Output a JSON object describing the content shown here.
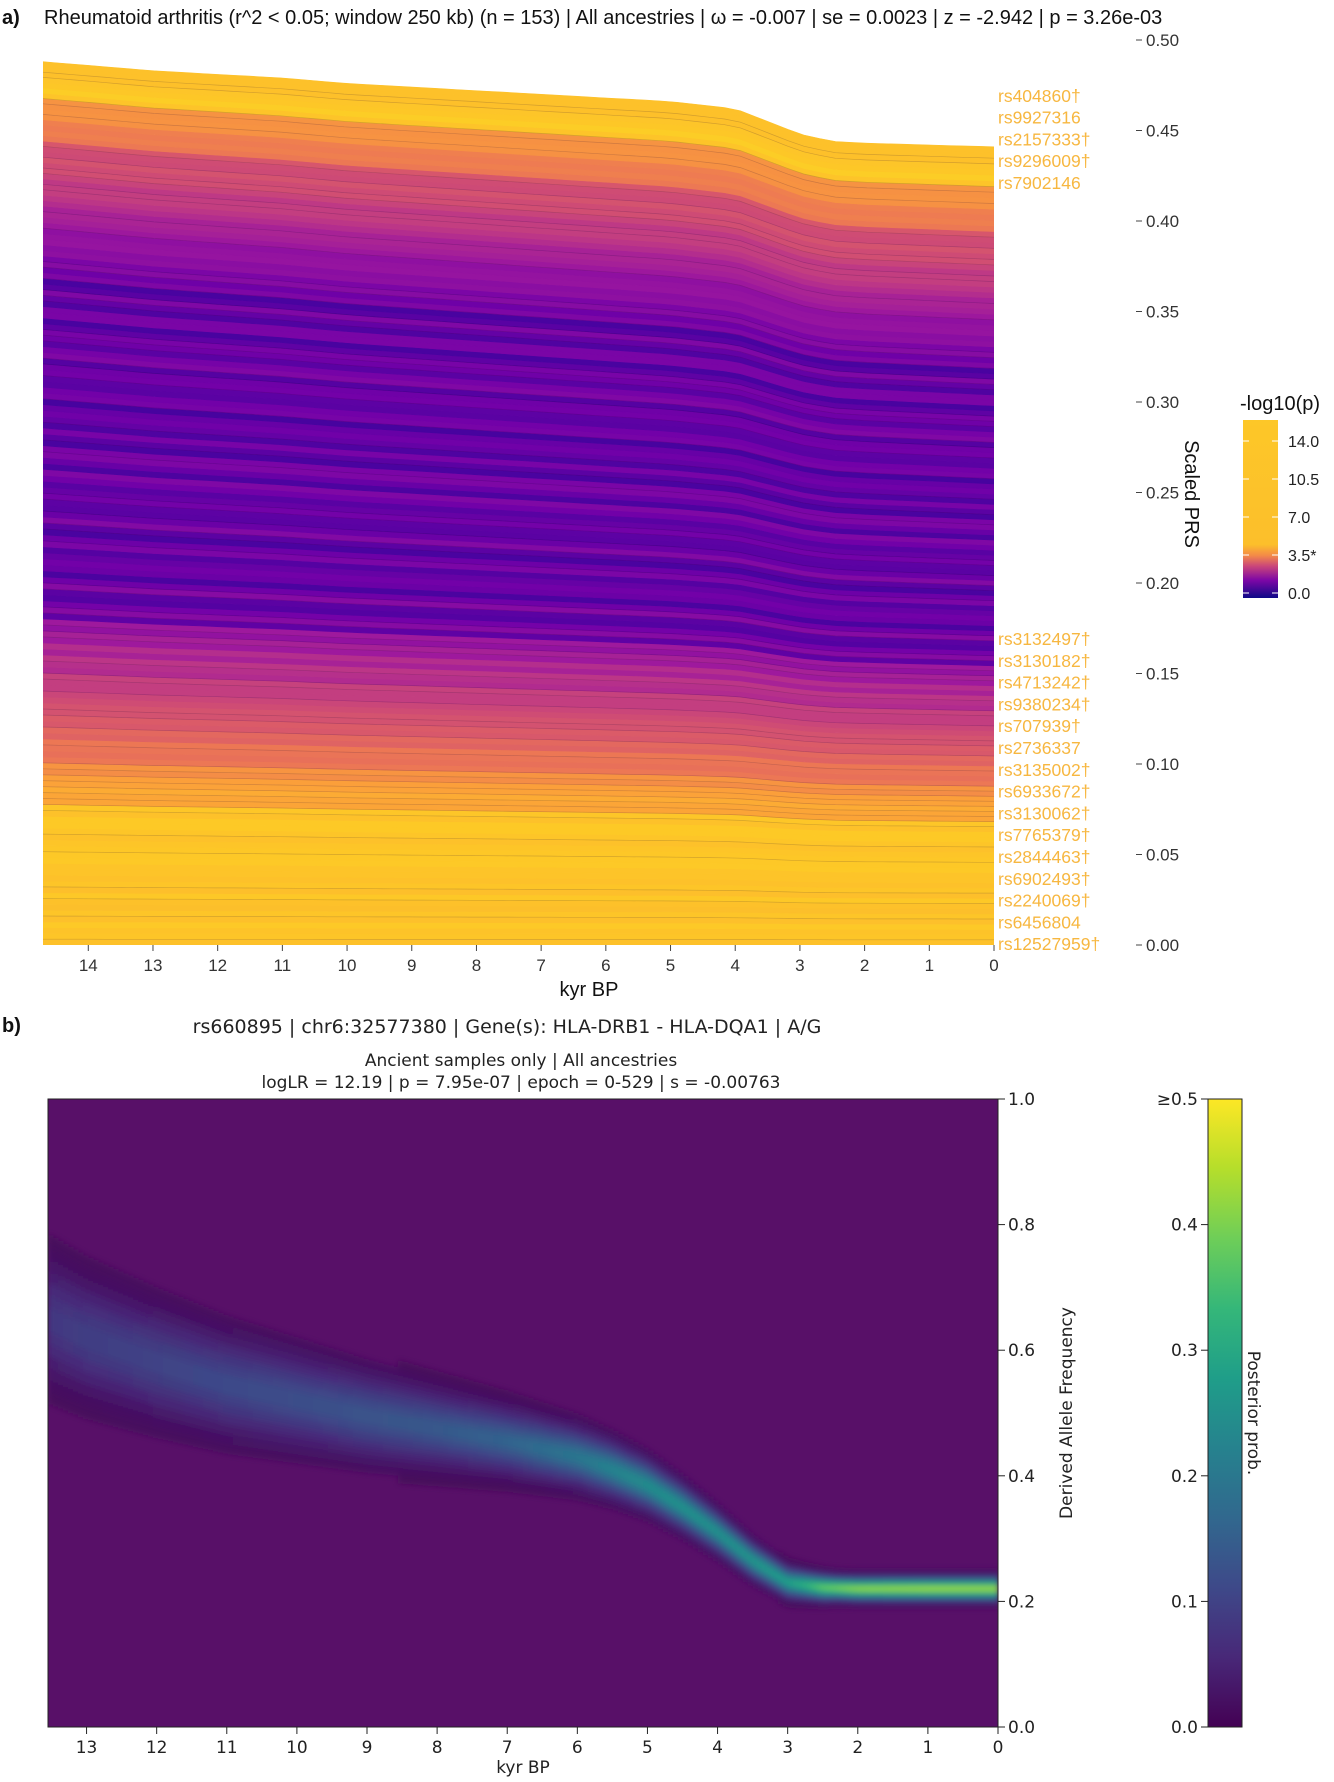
{
  "colors": {
    "plasma": [
      "#0d0887",
      "#46039f",
      "#7201a8",
      "#9c179e",
      "#bd3786",
      "#d8576b",
      "#ed7953",
      "#fb9f3a",
      "#fdca26",
      "#f0f921"
    ],
    "viridis": [
      "#440154",
      "#482878",
      "#3e4989",
      "#31688e",
      "#26828e",
      "#1f9e89",
      "#35b779",
      "#6ece58",
      "#b5de2b",
      "#fde725"
    ],
    "snp_label": "#f7b740",
    "heatmap_background": "#581068",
    "prs_yellow": "#fbbb3f"
  },
  "chart_data": [
    {
      "panel_label": "a)",
      "type": "area",
      "stacked": true,
      "title": "Rheumatoid arthritis (r^2 < 0.05; window 250 kb) (n = 153) | All ancestries | ω = -0.007 | se = 0.0023 | z = -2.942 | p = 3.26e-03",
      "xlabel": "kyr BP",
      "ylabel": "Scaled PRS",
      "xlim": [
        14.7,
        0
      ],
      "ylim": [
        0,
        0.5
      ],
      "x_ticks": [
        14,
        13,
        12,
        11,
        10,
        9,
        8,
        7,
        6,
        5,
        4,
        3,
        2,
        1,
        0
      ],
      "y_ticks": [
        "0.00",
        "0.05",
        "0.10",
        "0.15",
        "0.20",
        "0.25",
        "0.30",
        "0.35",
        "0.40",
        "0.45",
        "0.50"
      ],
      "y_axis_side": "right",
      "num_snps": 153,
      "total_prs": {
        "x": [
          14.7,
          14,
          13,
          12,
          11,
          10,
          9,
          8,
          7,
          6,
          5,
          4,
          3.5,
          3,
          2.5,
          2,
          1,
          0
        ],
        "y": [
          0.488,
          0.486,
          0.483,
          0.481,
          0.479,
          0.476,
          0.474,
          0.472,
          0.47,
          0.468,
          0.466,
          0.462,
          0.455,
          0.448,
          0.444,
          0.443,
          0.442,
          0.441
        ]
      },
      "annotated_snps_top": [
        "rs404860†",
        "rs9927316",
        "rs2157333†",
        "rs9296009†",
        "rs7902146"
      ],
      "annotated_snps_bottom": [
        "rs3132497†",
        "rs3130182†",
        "rs4713242†",
        "rs9380234†",
        "rs707939†",
        "rs2736337",
        "rs3135002†",
        "rs6933672†",
        "rs3130062†",
        "rs7765379†",
        "rs2844463†",
        "rs6902493†",
        "rs2240069†",
        "rs6456804",
        "rs12527959†"
      ],
      "legend": {
        "title": "-log10(p)",
        "labels": [
          "14.0",
          "10.5",
          "7.0",
          "3.5*",
          "0.0"
        ],
        "placement": "right"
      }
    },
    {
      "panel_label": "b)",
      "type": "heatmap",
      "title": "rs660895 | chr6:32577380 | Gene(s): HLA-DRB1 - HLA-DQA1 | A/G",
      "subtitle": "Ancient samples only | All ancestries",
      "stats": "logLR = 12.19 | p = 7.95e-07 | epoch = 0-529 | s = -0.00763",
      "xlabel": "kyr BP",
      "ylabel": "Derived Allele Frequency",
      "xlim": [
        13.55,
        0
      ],
      "ylim": [
        0,
        1
      ],
      "x_ticks": [
        13,
        12,
        11,
        10,
        9,
        8,
        7,
        6,
        5,
        4,
        3,
        2,
        1,
        0
      ],
      "y_ticks": [
        "0.0",
        "0.2",
        "0.4",
        "0.6",
        "0.8",
        "1.0"
      ],
      "y_axis_side": "right",
      "trajectory": {
        "x": [
          13.55,
          13,
          12,
          11,
          10,
          9,
          8,
          7,
          6,
          5.5,
          5,
          4.5,
          4,
          3.5,
          3,
          2.7,
          2.5,
          2,
          1,
          0
        ],
        "y": [
          0.65,
          0.62,
          0.58,
          0.545,
          0.52,
          0.495,
          0.475,
          0.455,
          0.43,
          0.41,
          0.385,
          0.35,
          0.31,
          0.265,
          0.23,
          0.225,
          0.222,
          0.22,
          0.22,
          0.22
        ],
        "posterior_peak": [
          0.09,
          0.1,
          0.11,
          0.12,
          0.13,
          0.14,
          0.15,
          0.17,
          0.21,
          0.24,
          0.26,
          0.27,
          0.27,
          0.28,
          0.3,
          0.35,
          0.4,
          0.44,
          0.45,
          0.45
        ]
      },
      "colorbar": {
        "label": "Posterior prob.",
        "ticks": [
          "0.0",
          "0.1",
          "0.2",
          "0.3",
          "0.4",
          "≥0.5"
        ],
        "max": 0.5,
        "placement": "right"
      }
    }
  ]
}
